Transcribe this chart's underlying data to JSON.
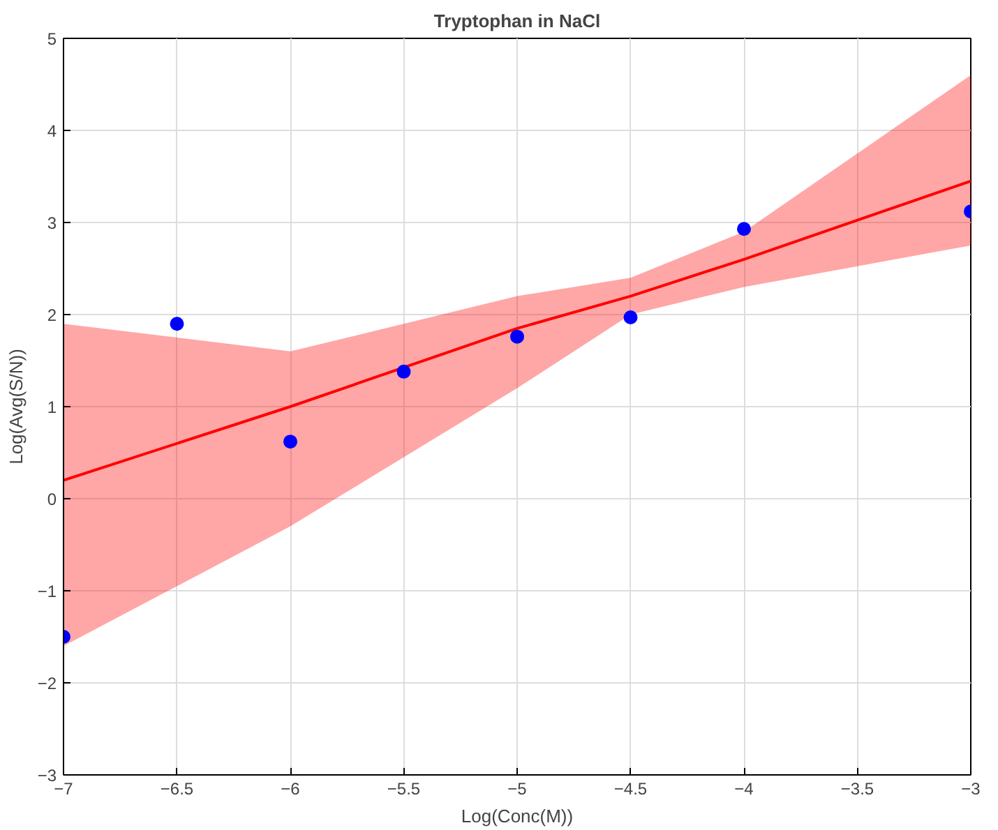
{
  "chart_data": {
    "type": "scatter",
    "title": "Tryptophan in NaCl",
    "xlabel": "Log(Conc(M))",
    "ylabel": "Log(Avg(S/N))",
    "xlim": [
      -7,
      -3
    ],
    "ylim": [
      -3,
      5
    ],
    "xticks": [
      -7,
      -6.5,
      -6,
      -5.5,
      -5,
      -4.5,
      -4,
      -3.5,
      -3
    ],
    "yticks": [
      -3,
      -2,
      -1,
      0,
      1,
      2,
      3,
      4,
      5
    ],
    "grid": true,
    "x": [
      -7,
      -6.5,
      -6,
      -5.5,
      -5,
      -4.5,
      -4,
      -3
    ],
    "series": [
      {
        "type": "line",
        "color": "#ff0000",
        "x": [
          -7,
          -6,
          -5,
          -4.5,
          -4,
          -3
        ],
        "values": [
          0.2,
          1.0,
          1.85,
          2.2,
          2.6,
          3.45
        ],
        "lower": [
          -1.6,
          -0.3,
          1.2,
          2.0,
          2.3,
          2.75
        ],
        "upper": [
          1.9,
          1.6,
          2.2,
          2.4,
          2.9,
          4.6
        ]
      },
      {
        "marker": "circle",
        "color": "#0000ff",
        "values": [
          -1.5,
          1.9,
          0.62,
          1.38,
          1.76,
          1.97,
          2.93,
          3.12
        ]
      }
    ]
  }
}
